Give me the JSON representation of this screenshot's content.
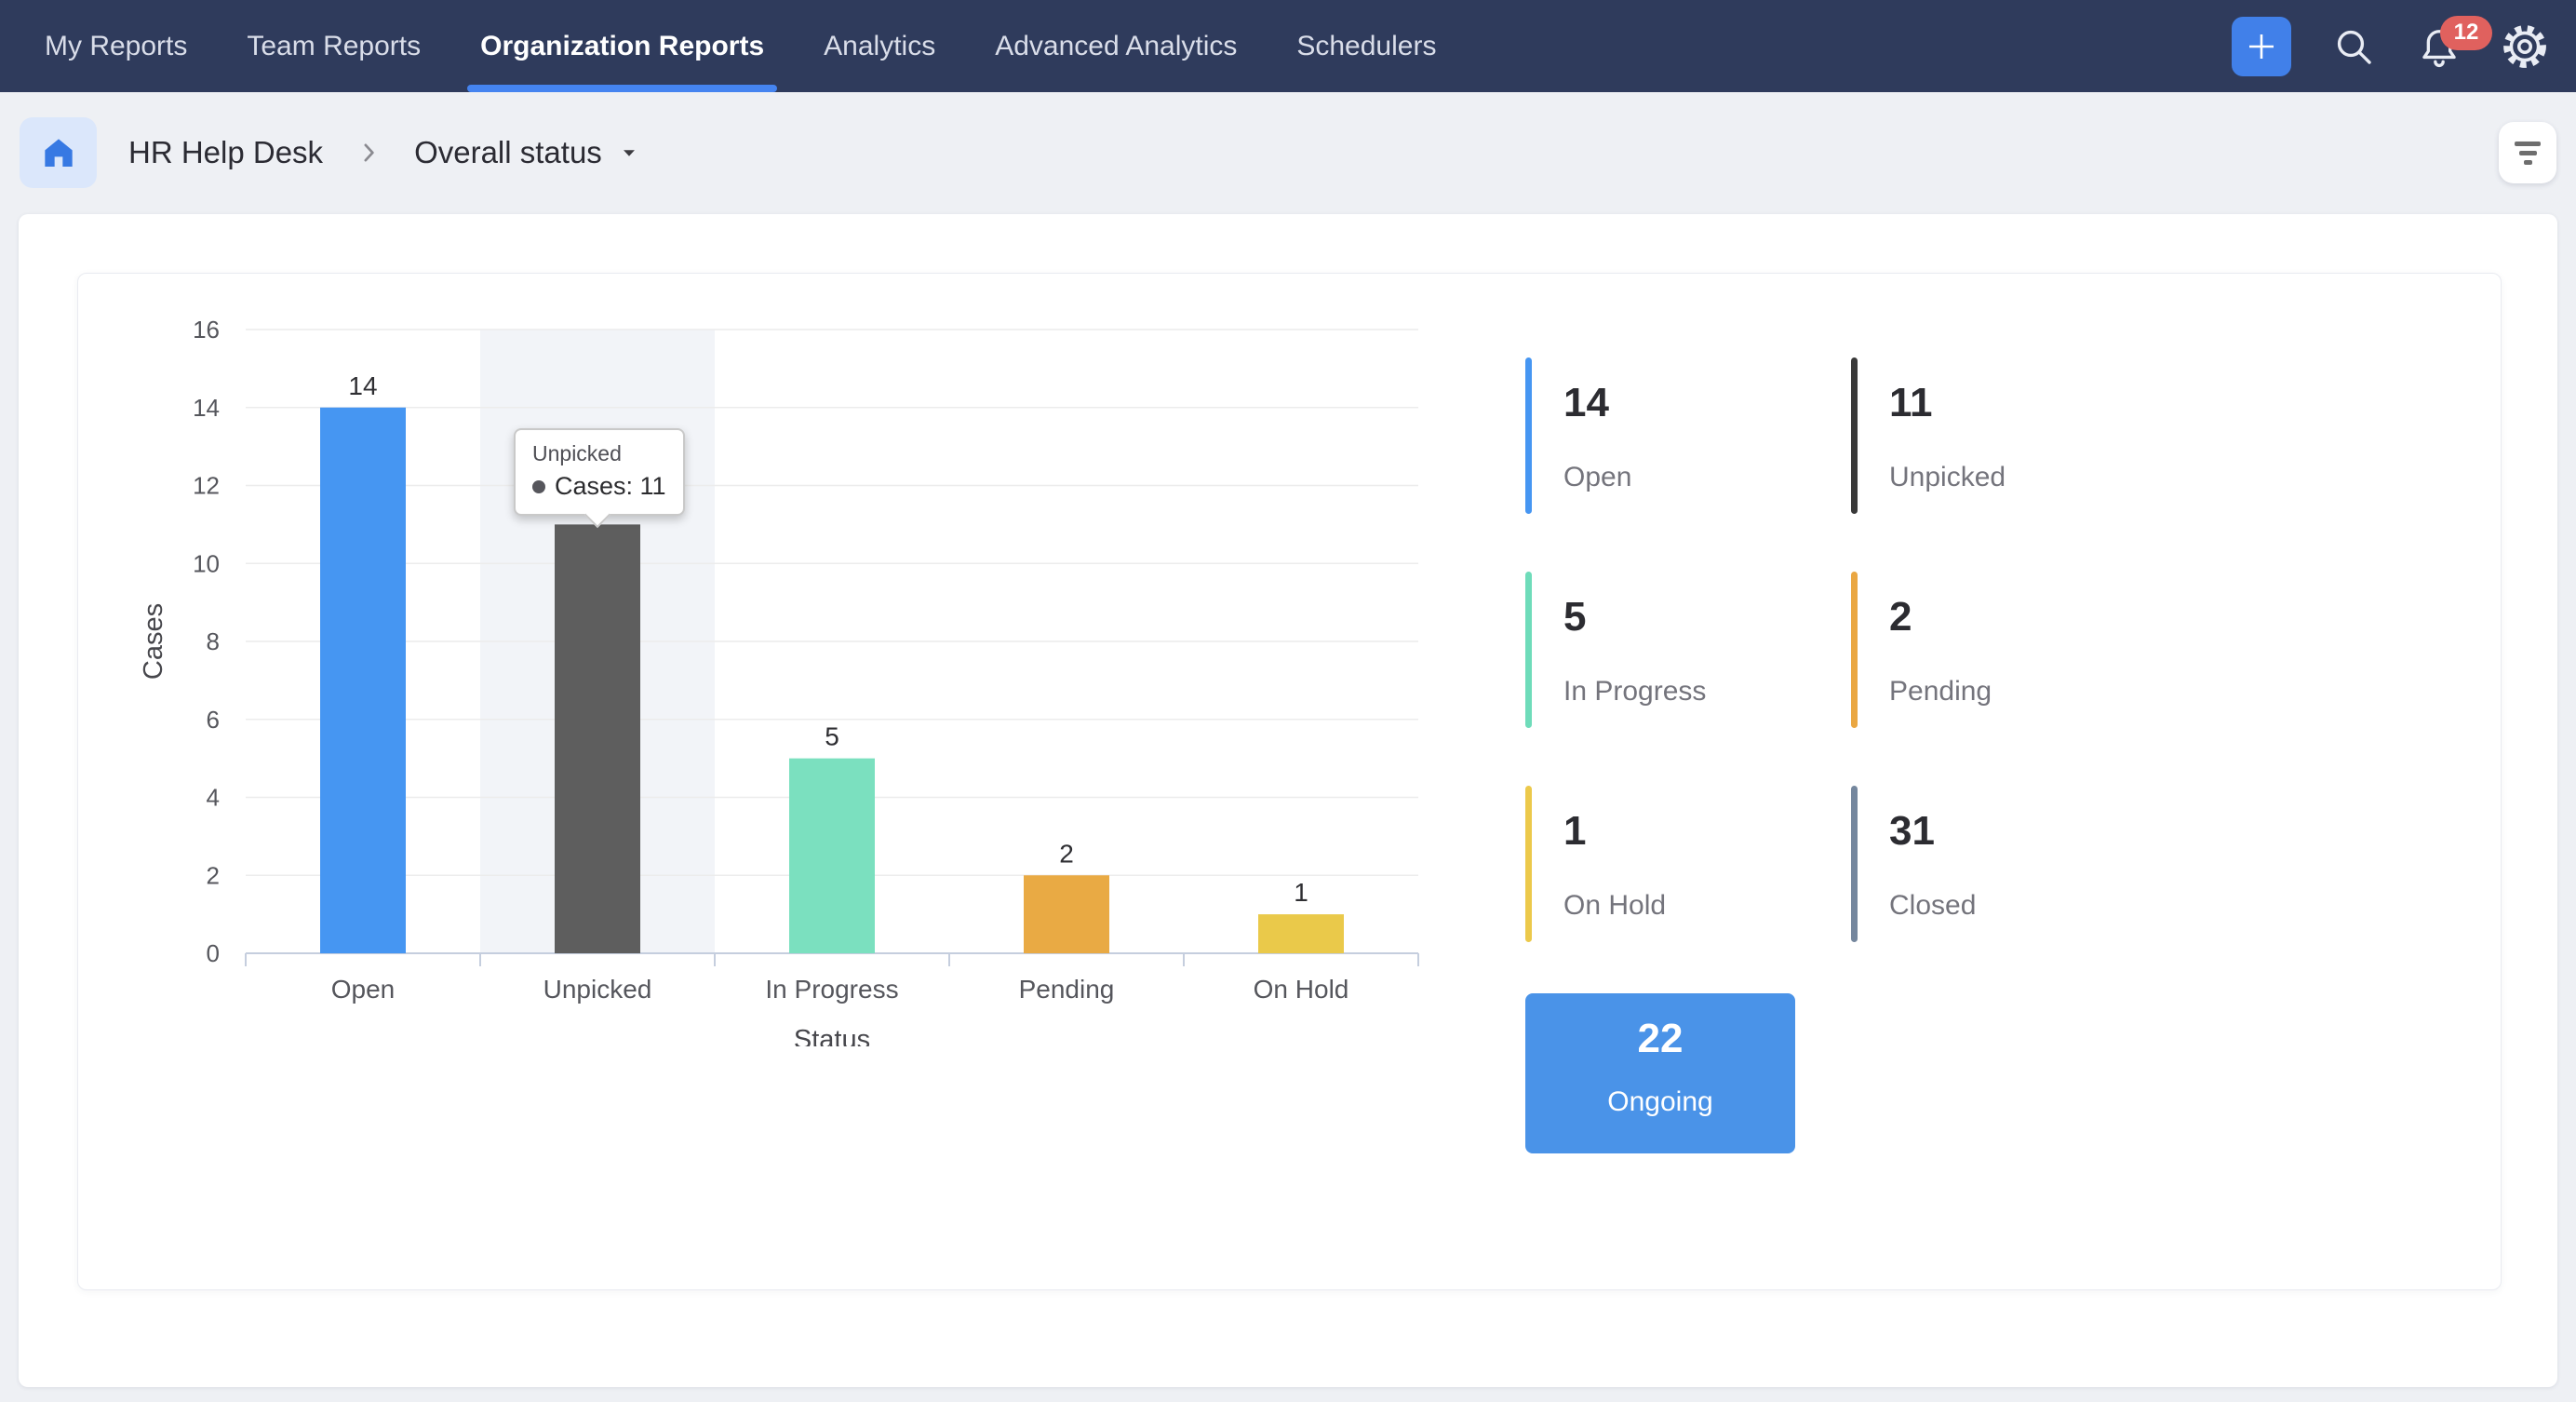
{
  "nav": {
    "tabs": [
      {
        "label": "My Reports",
        "active": false
      },
      {
        "label": "Team Reports",
        "active": false
      },
      {
        "label": "Organization Reports",
        "active": true
      },
      {
        "label": "Analytics",
        "active": false
      },
      {
        "label": "Advanced Analytics",
        "active": false
      },
      {
        "label": "Schedulers",
        "active": false
      }
    ],
    "notification_count": "12"
  },
  "breadcrumb": {
    "app": "HR Help Desk",
    "page": "Overall status"
  },
  "chart_data": {
    "type": "bar",
    "title": "",
    "xlabel": "Status",
    "ylabel": "Cases",
    "categories": [
      "Open",
      "Unpicked",
      "In Progress",
      "Pending",
      "On Hold"
    ],
    "values": [
      14,
      11,
      5,
      2,
      1
    ],
    "bar_colors": [
      "#4696f2",
      "#5e5e5e",
      "#7be0bf",
      "#e9aa44",
      "#eac94a"
    ],
    "ylim": [
      0,
      16
    ],
    "ytick_step": 2,
    "grid": true,
    "legend": "none",
    "highlight_category": "Unpicked",
    "tooltip": {
      "category": "Unpicked",
      "label": "Cases",
      "value": 11
    }
  },
  "stats": {
    "cards": [
      {
        "value": "14",
        "label": "Open",
        "color": "#4696f2"
      },
      {
        "value": "11",
        "label": "Unpicked",
        "color": "#3a3a3a"
      },
      {
        "value": "5",
        "label": "In Progress",
        "color": "#6fdcba"
      },
      {
        "value": "2",
        "label": "Pending",
        "color": "#eaa742"
      },
      {
        "value": "1",
        "label": "On Hold",
        "color": "#ecc94b"
      },
      {
        "value": "31",
        "label": "Closed",
        "color": "#75879e"
      }
    ],
    "ongoing": {
      "value": "22",
      "label": "Ongoing",
      "bg": "#4a93e8"
    }
  },
  "colors": {
    "nav_bg": "#2f3b5c",
    "accent_blue": "#4584f0",
    "plus_button_bg": "#4180e9",
    "badge_bg": "#e0615e",
    "page_bg": "#eef0f4",
    "highlight_band": "#f2f4f8",
    "ongoing_bg": "#4a93e8"
  }
}
